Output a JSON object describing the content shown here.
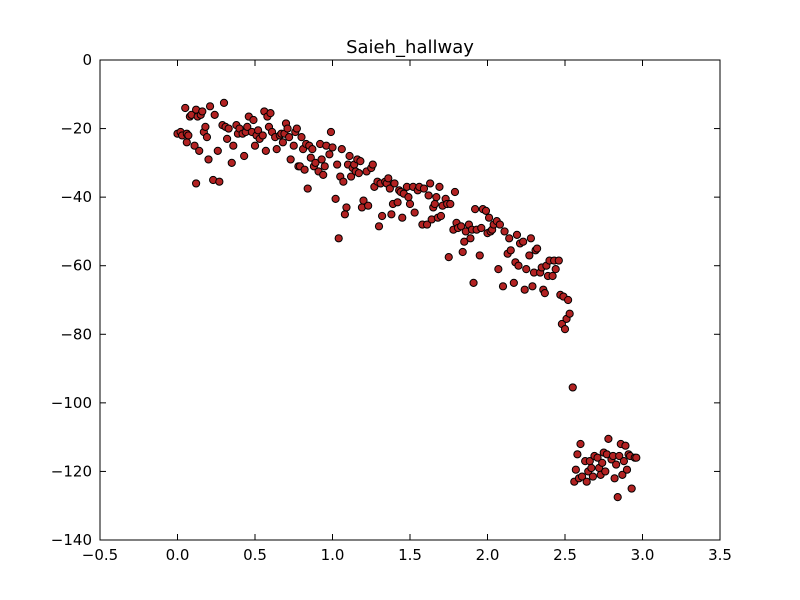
{
  "chart_data": {
    "type": "scatter",
    "title": "Saieh_hallway",
    "xlabel": "",
    "ylabel": "",
    "xlim": [
      -0.5,
      3.5
    ],
    "ylim": [
      -140,
      0
    ],
    "xticks": [
      -0.5,
      0.0,
      0.5,
      1.0,
      1.5,
      2.0,
      2.5,
      3.0,
      3.5
    ],
    "xtick_labels": [
      "−0.5",
      "0.0",
      "0.5",
      "1.0",
      "1.5",
      "2.0",
      "2.5",
      "3.0",
      "3.5"
    ],
    "yticks": [
      0,
      -20,
      -40,
      -60,
      -80,
      -100,
      -120,
      -140
    ],
    "ytick_labels": [
      "0",
      "−20",
      "−40",
      "−60",
      "−80",
      "−100",
      "−120",
      "−140"
    ],
    "grid": false,
    "marker_color": "#b22222",
    "edge_color": "#000000",
    "series": [
      {
        "points": [
          [
            0.0,
            -21.5
          ],
          [
            0.02,
            -21
          ],
          [
            0.03,
            -22
          ],
          [
            0.05,
            -14
          ],
          [
            0.06,
            -21.5
          ],
          [
            0.06,
            -24
          ],
          [
            0.07,
            -22
          ],
          [
            0.08,
            -16.5
          ],
          [
            0.09,
            -16
          ],
          [
            0.11,
            -25
          ],
          [
            0.12,
            -14.5
          ],
          [
            0.12,
            -36
          ],
          [
            0.13,
            -16.5
          ],
          [
            0.14,
            -26.5
          ],
          [
            0.15,
            -16
          ],
          [
            0.16,
            -15
          ],
          [
            0.17,
            -21
          ],
          [
            0.18,
            -19.5
          ],
          [
            0.19,
            -22.5
          ],
          [
            0.2,
            -29
          ],
          [
            0.21,
            -13.5
          ],
          [
            0.23,
            -35
          ],
          [
            0.24,
            -16
          ],
          [
            0.26,
            -26.5
          ],
          [
            0.27,
            -35.5
          ],
          [
            0.29,
            -19
          ],
          [
            0.3,
            -12.5
          ],
          [
            0.31,
            -19.5
          ],
          [
            0.32,
            -23
          ],
          [
            0.33,
            -20
          ],
          [
            0.35,
            -30
          ],
          [
            0.36,
            -25
          ],
          [
            0.38,
            -19
          ],
          [
            0.39,
            -21.5
          ],
          [
            0.4,
            -20
          ],
          [
            0.42,
            -21.5
          ],
          [
            0.43,
            -28
          ],
          [
            0.44,
            -21
          ],
          [
            0.45,
            -19.5
          ],
          [
            0.46,
            -16.5
          ],
          [
            0.48,
            -21
          ],
          [
            0.49,
            -17.5
          ],
          [
            0.5,
            -25
          ],
          [
            0.51,
            -22
          ],
          [
            0.52,
            -20.5
          ],
          [
            0.53,
            -23
          ],
          [
            0.55,
            -22
          ],
          [
            0.56,
            -15
          ],
          [
            0.57,
            -26.5
          ],
          [
            0.58,
            -16.5
          ],
          [
            0.59,
            -19.5
          ],
          [
            0.6,
            -15.5
          ],
          [
            0.61,
            -21
          ],
          [
            0.63,
            -22.5
          ],
          [
            0.64,
            -26
          ],
          [
            0.66,
            -22
          ],
          [
            0.67,
            -21.5
          ],
          [
            0.68,
            -24
          ],
          [
            0.69,
            -21.5
          ],
          [
            0.7,
            -18.5
          ],
          [
            0.71,
            -20
          ],
          [
            0.72,
            -22.5
          ],
          [
            0.73,
            -29
          ],
          [
            0.75,
            -25
          ],
          [
            0.76,
            -21
          ],
          [
            0.77,
            -20
          ],
          [
            0.78,
            -31
          ],
          [
            0.79,
            -31
          ],
          [
            0.8,
            -22.5
          ],
          [
            0.81,
            -26
          ],
          [
            0.82,
            -32
          ],
          [
            0.83,
            -24.5
          ],
          [
            0.84,
            -37.5
          ],
          [
            0.85,
            -25
          ],
          [
            0.86,
            -28.5
          ],
          [
            0.87,
            -26
          ],
          [
            0.88,
            -31
          ],
          [
            0.89,
            -30
          ],
          [
            0.91,
            -32.5
          ],
          [
            0.92,
            -24.5
          ],
          [
            0.93,
            -29
          ],
          [
            0.94,
            -33.5
          ],
          [
            0.95,
            -31
          ],
          [
            0.96,
            -25
          ],
          [
            0.98,
            -27.5
          ],
          [
            0.99,
            -21
          ],
          [
            1.0,
            -25.5
          ],
          [
            1.02,
            -40.5
          ],
          [
            1.03,
            -30.5
          ],
          [
            1.04,
            -52
          ],
          [
            1.05,
            -34
          ],
          [
            1.06,
            -26
          ],
          [
            1.07,
            -35.5
          ],
          [
            1.08,
            -45
          ],
          [
            1.09,
            -43
          ],
          [
            1.1,
            -30.5
          ],
          [
            1.11,
            -28
          ],
          [
            1.12,
            -34
          ],
          [
            1.13,
            -31.5
          ],
          [
            1.14,
            -30.5
          ],
          [
            1.15,
            -32.5
          ],
          [
            1.16,
            -29
          ],
          [
            1.17,
            -33
          ],
          [
            1.18,
            -29.5
          ],
          [
            1.19,
            -43
          ],
          [
            1.2,
            -41
          ],
          [
            1.22,
            -32.5
          ],
          [
            1.23,
            -42.5
          ],
          [
            1.25,
            -31.5
          ],
          [
            1.26,
            -30.5
          ],
          [
            1.27,
            -37
          ],
          [
            1.29,
            -35.5
          ],
          [
            1.3,
            -48.5
          ],
          [
            1.31,
            -36
          ],
          [
            1.32,
            -45.5
          ],
          [
            1.34,
            -35.5
          ],
          [
            1.35,
            -36
          ],
          [
            1.36,
            -34.5
          ],
          [
            1.37,
            -37.5
          ],
          [
            1.38,
            -45
          ],
          [
            1.39,
            -42
          ],
          [
            1.4,
            -36
          ],
          [
            1.42,
            -41.5
          ],
          [
            1.43,
            -38
          ],
          [
            1.44,
            -38.5
          ],
          [
            1.45,
            -46
          ],
          [
            1.46,
            -39
          ],
          [
            1.48,
            -37
          ],
          [
            1.49,
            -40
          ],
          [
            1.5,
            -42
          ],
          [
            1.52,
            -37
          ],
          [
            1.53,
            -44.5
          ],
          [
            1.55,
            -38
          ],
          [
            1.56,
            -37
          ],
          [
            1.58,
            -48
          ],
          [
            1.59,
            -37.5
          ],
          [
            1.61,
            -48
          ],
          [
            1.62,
            -39.5
          ],
          [
            1.63,
            -36
          ],
          [
            1.64,
            -46.5
          ],
          [
            1.65,
            -43
          ],
          [
            1.66,
            -42
          ],
          [
            1.67,
            -40
          ],
          [
            1.68,
            -46
          ],
          [
            1.69,
            -37
          ],
          [
            1.7,
            -45.5
          ],
          [
            1.71,
            -42.5
          ],
          [
            1.73,
            -40.5
          ],
          [
            1.74,
            -42
          ],
          [
            1.75,
            -57.5
          ],
          [
            1.76,
            -42
          ],
          [
            1.78,
            -49.5
          ],
          [
            1.79,
            -38.5
          ],
          [
            1.8,
            -47.5
          ],
          [
            1.81,
            -49
          ],
          [
            1.83,
            -48.5
          ],
          [
            1.84,
            -56
          ],
          [
            1.85,
            -53
          ],
          [
            1.86,
            -50
          ],
          [
            1.88,
            -48
          ],
          [
            1.89,
            -52
          ],
          [
            1.9,
            -49.5
          ],
          [
            1.91,
            -65
          ],
          [
            1.92,
            -43.5
          ],
          [
            1.93,
            -49.5
          ],
          [
            1.95,
            -57
          ],
          [
            1.96,
            -49
          ],
          [
            1.97,
            -43.5
          ],
          [
            1.99,
            -44
          ],
          [
            2.0,
            -50.5
          ],
          [
            2.01,
            -46
          ],
          [
            2.02,
            -50
          ],
          [
            2.03,
            -49.5
          ],
          [
            2.04,
            -48
          ],
          [
            2.06,
            -47
          ],
          [
            2.07,
            -61
          ],
          [
            2.08,
            -48
          ],
          [
            2.1,
            -66
          ],
          [
            2.11,
            -50
          ],
          [
            2.13,
            -56.5
          ],
          [
            2.14,
            -52
          ],
          [
            2.15,
            -55.5
          ],
          [
            2.17,
            -65
          ],
          [
            2.18,
            -59
          ],
          [
            2.19,
            -51
          ],
          [
            2.2,
            -60
          ],
          [
            2.21,
            -53.5
          ],
          [
            2.23,
            -53
          ],
          [
            2.24,
            -67
          ],
          [
            2.25,
            -61
          ],
          [
            2.27,
            -57
          ],
          [
            2.28,
            -52
          ],
          [
            2.29,
            -66
          ],
          [
            2.3,
            -62
          ],
          [
            2.31,
            -55.5
          ],
          [
            2.32,
            -55
          ],
          [
            2.34,
            -62
          ],
          [
            2.35,
            -60.5
          ],
          [
            2.36,
            -67
          ],
          [
            2.37,
            -68
          ],
          [
            2.38,
            -60
          ],
          [
            2.39,
            -63
          ],
          [
            2.4,
            -58.5
          ],
          [
            2.42,
            -63
          ],
          [
            2.43,
            -58.5
          ],
          [
            2.44,
            -61
          ],
          [
            2.46,
            -58.5
          ],
          [
            2.47,
            -68.5
          ],
          [
            2.48,
            -77
          ],
          [
            2.49,
            -69
          ],
          [
            2.5,
            -78.5
          ],
          [
            2.51,
            -75.5
          ],
          [
            2.52,
            -70
          ],
          [
            2.53,
            -74
          ],
          [
            2.55,
            -95.5
          ],
          [
            2.56,
            -123
          ],
          [
            2.57,
            -119.5
          ],
          [
            2.58,
            -115
          ],
          [
            2.59,
            -122
          ],
          [
            2.6,
            -112
          ],
          [
            2.61,
            -121.5
          ],
          [
            2.63,
            -117
          ],
          [
            2.64,
            -123
          ],
          [
            2.65,
            -120
          ],
          [
            2.66,
            -117
          ],
          [
            2.67,
            -119
          ],
          [
            2.68,
            -121.5
          ],
          [
            2.69,
            -115.5
          ],
          [
            2.71,
            -116
          ],
          [
            2.72,
            -119
          ],
          [
            2.73,
            -121
          ],
          [
            2.74,
            -117.5
          ],
          [
            2.75,
            -114.5
          ],
          [
            2.76,
            -120
          ],
          [
            2.77,
            -115
          ],
          [
            2.78,
            -110.5
          ],
          [
            2.8,
            -116.5
          ],
          [
            2.81,
            -115.5
          ],
          [
            2.82,
            -122
          ],
          [
            2.83,
            -118
          ],
          [
            2.84,
            -127.5
          ],
          [
            2.85,
            -115.5
          ],
          [
            2.86,
            -112
          ],
          [
            2.87,
            -121
          ],
          [
            2.88,
            -117
          ],
          [
            2.89,
            -112.5
          ],
          [
            2.9,
            -119.5
          ],
          [
            2.91,
            -115
          ],
          [
            2.92,
            -115.5
          ],
          [
            2.93,
            -125
          ],
          [
            2.95,
            -116
          ],
          [
            2.96,
            -116
          ]
        ]
      }
    ]
  }
}
